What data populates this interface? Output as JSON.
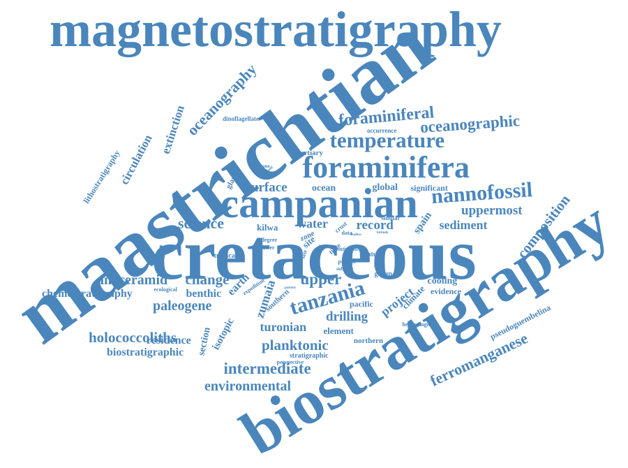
{
  "cloud": {
    "color": "#4a86bc",
    "background": "#ffffff",
    "words": [
      "magnetostratigraphy",
      "maastrichtian",
      "cretaceous",
      "biostratigraphy",
      "campanian",
      "foraminifera",
      "temperature",
      "foraminiferal",
      "oceanographic",
      "nannofossil",
      "uppermost",
      "sediment",
      "composition",
      "spain",
      "oceanography",
      "extinction",
      "circulation",
      "lithostratigraphy",
      "dinoflagellate",
      "glassy",
      "surface",
      "ocean",
      "global",
      "significant",
      "science",
      "record",
      "water",
      "kilwa",
      "inoceramid",
      "change",
      "upper",
      "chemostratigraphy",
      "benthic",
      "paleogene",
      "earth",
      "zumaia",
      "tanzania",
      "drilling",
      "project",
      "climate",
      "cooling",
      "evidence",
      "holococcoliths",
      "residence",
      "biostratigraphic",
      "section",
      "isotopic",
      "turonian",
      "element",
      "planktonic",
      "stratigraphic",
      "intermediate",
      "environmental",
      "ferromanganese",
      "pseudoguembelina",
      "pacific",
      "northern",
      "tropical",
      "group",
      "datum",
      "hemipelagic",
      "tertiary",
      "occurrence",
      "sandstone",
      "perspective",
      "southern",
      "zone",
      "site",
      "crust",
      "similar",
      "ecological",
      "expedition",
      "lower",
      "continuous",
      "present",
      "time",
      "rare",
      "late",
      "degree",
      "data",
      "subzone",
      "pattern",
      "shallow",
      "abundant",
      "organic",
      "latitude"
    ]
  }
}
